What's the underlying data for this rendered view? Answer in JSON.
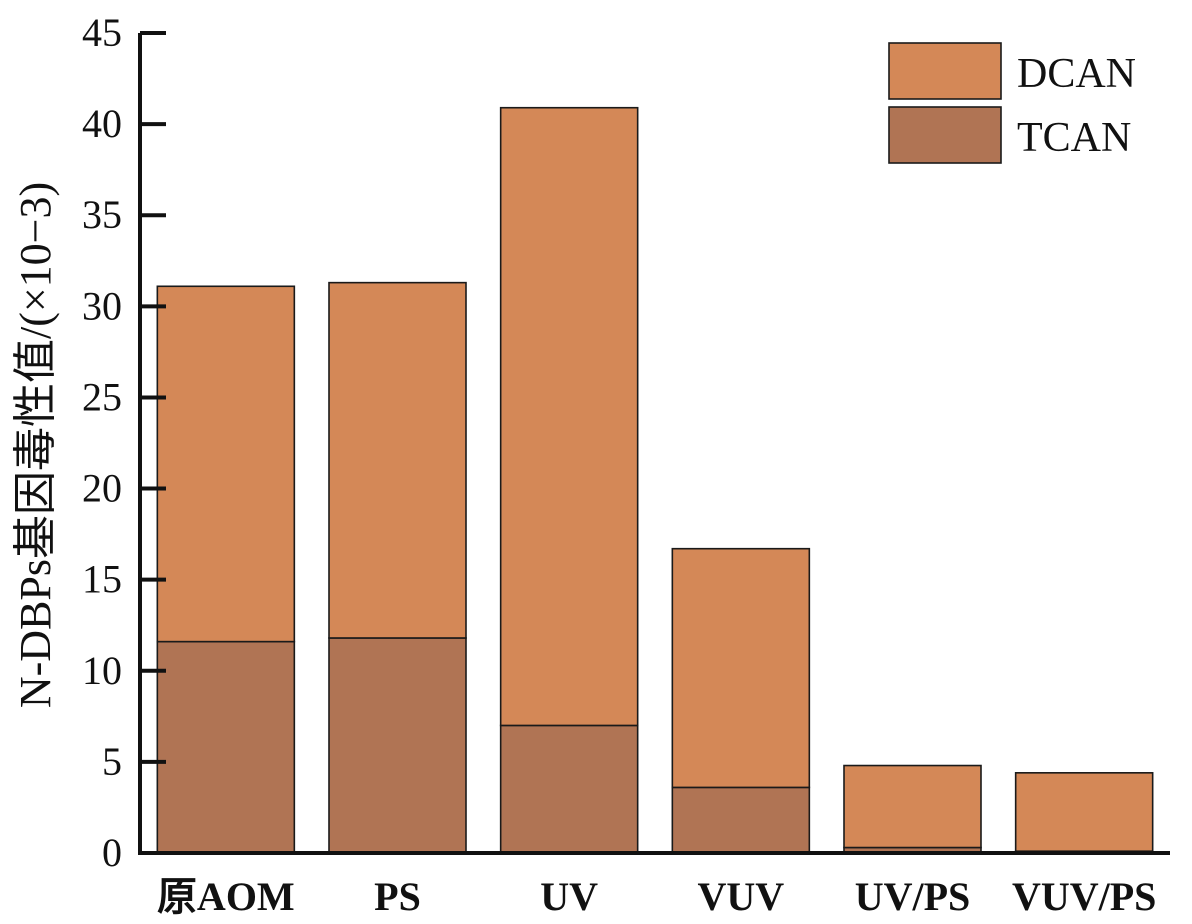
{
  "chart_data": {
    "type": "bar",
    "stacked": true,
    "title": "",
    "xlabel": "",
    "ylabel": "N-DBPs基因毒性值/(×10−3)",
    "ylim": [
      0,
      45
    ],
    "yticks": [
      0,
      5,
      10,
      15,
      20,
      25,
      30,
      35,
      40,
      45
    ],
    "categories": [
      "原AOM",
      "PS",
      "UV",
      "VUV",
      "UV/PS",
      "VUV/PS"
    ],
    "series": [
      {
        "name": "TCAN",
        "color": "#b07454",
        "values": [
          11.6,
          11.8,
          7.0,
          3.6,
          0.3,
          0.1
        ]
      },
      {
        "name": "DCAN",
        "color": "#d48857",
        "values": [
          19.5,
          19.5,
          33.9,
          13.1,
          4.5,
          4.3
        ]
      }
    ],
    "legend": {
      "position": "top-right",
      "order": [
        "DCAN",
        "TCAN"
      ]
    },
    "grid": false
  }
}
